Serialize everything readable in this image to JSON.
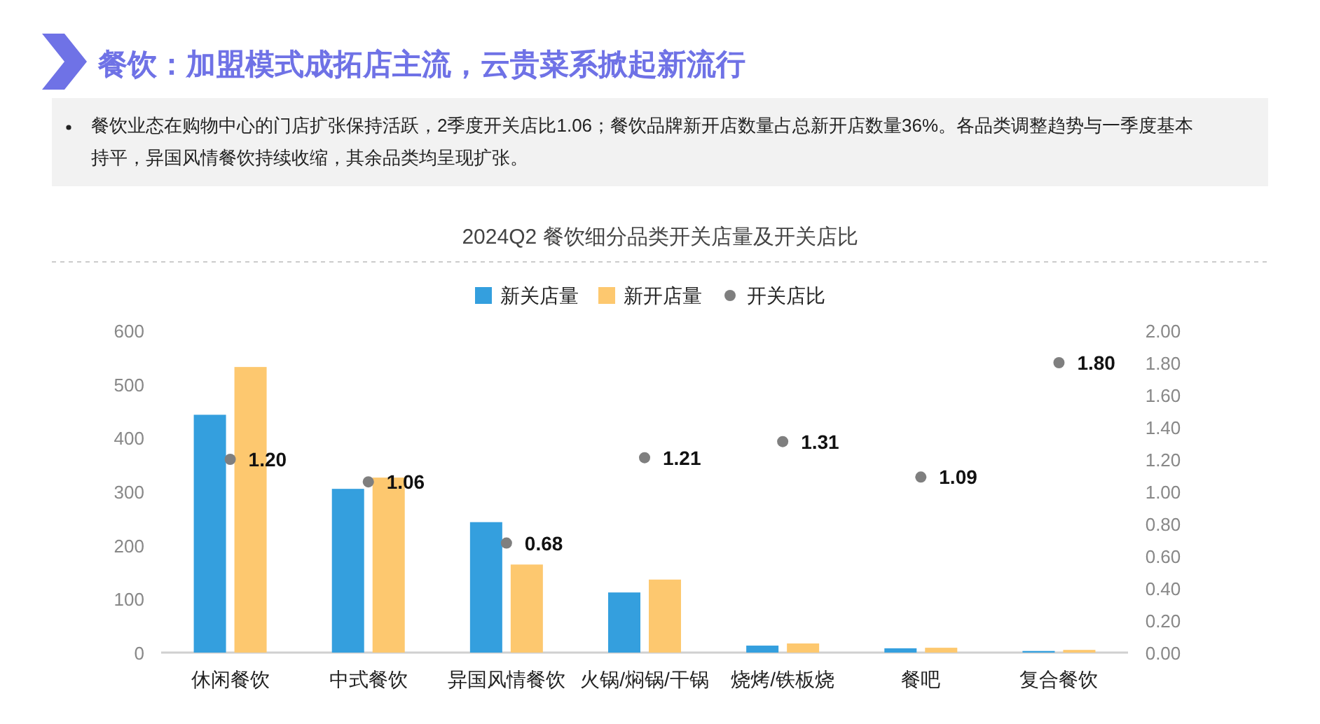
{
  "chart_data": {
    "type": "bar",
    "title": "餐饮：加盟模式成拓店主流，云贵菜系掀起新流行",
    "subtitle": "2024Q2 餐饮细分品类开关店量及开关店比",
    "annotations": [
      "餐饮业态在购物中心的门店扩张保持活跃，2季度开关店比1.06；餐饮品牌新开店数量占总新开店数量36%。各品类调整趋势与一季度基本持平，异国风情餐饮持续收缩，其余品类均呈现扩张。"
    ],
    "categories": [
      "休闲餐饮",
      "中式餐饮",
      "异国风情餐饮",
      "火锅/焖锅/干锅",
      "烧烤/铁板烧",
      "餐吧",
      "复合餐饮"
    ],
    "series": [
      {
        "name": "新关店量",
        "color": "#349fde",
        "values": [
          443,
          305,
          243,
          112,
          13,
          8,
          3
        ]
      },
      {
        "name": "新开店量",
        "color": "#fdc86f",
        "values": [
          532,
          326,
          164,
          136,
          17,
          9,
          5
        ]
      },
      {
        "name": "开关店比",
        "type": "scatter",
        "axis": "y2",
        "color": "#7f7f7f",
        "marker": "circle",
        "values": [
          1.2,
          1.06,
          0.68,
          1.21,
          1.31,
          1.09,
          1.8
        ],
        "value_labels": [
          "1.20",
          "1.06",
          "0.68",
          "1.21",
          "1.31",
          "1.09",
          "1.80"
        ]
      }
    ],
    "ylim": [
      0,
      600
    ],
    "yticks": [
      0,
      100,
      200,
      300,
      400,
      500,
      600
    ],
    "y2lim": [
      0,
      2
    ],
    "y2ticks": [
      {
        "value": 0,
        "label": "0.00"
      },
      {
        "value": 0.2,
        "label": "0.20"
      },
      {
        "value": 0.4,
        "label": "0.40"
      },
      {
        "value": 0.6,
        "label": "0.60"
      },
      {
        "value": 0.8,
        "label": "0.80"
      },
      {
        "value": 1,
        "label": "1.00"
      },
      {
        "value": 1.2,
        "label": "1.20"
      },
      {
        "value": 1.4,
        "label": "1.40"
      },
      {
        "value": 1.6,
        "label": "1.60"
      },
      {
        "value": 1.8,
        "label": "1.80"
      },
      {
        "value": 2,
        "label": "2.00"
      }
    ],
    "legend": "top",
    "grid": false
  }
}
